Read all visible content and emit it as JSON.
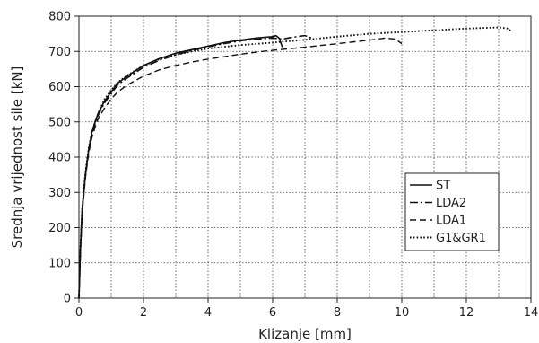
{
  "chart_data": {
    "type": "line",
    "xlabel": "Klizanje [mm]",
    "ylabel": "Srednja vrijednost sile [kN]",
    "xlim": [
      0,
      14
    ],
    "ylim": [
      0,
      800
    ],
    "xticks": [
      "0",
      "2",
      "4",
      "6",
      "8",
      "10",
      "12",
      "14"
    ],
    "yticks": [
      "0",
      "100",
      "200",
      "300",
      "400",
      "500",
      "600",
      "700",
      "800"
    ],
    "grid": true,
    "legend_position": "center-right",
    "series": [
      {
        "name": "ST",
        "style": "solid",
        "x": [
          0,
          0.05,
          0.1,
          0.2,
          0.3,
          0.4,
          0.5,
          0.6,
          0.8,
          1.0,
          1.2,
          1.5,
          2.0,
          2.5,
          3.0,
          3.5,
          4.0,
          4.5,
          5.0,
          5.5,
          6.0,
          6.1,
          6.2,
          6.25,
          6.3
        ],
        "y": [
          0,
          150,
          250,
          350,
          420,
          470,
          500,
          525,
          560,
          585,
          610,
          630,
          660,
          680,
          695,
          705,
          715,
          725,
          732,
          738,
          742,
          745,
          738,
          725,
          712
        ]
      },
      {
        "name": "LDA2",
        "style": "dashdot",
        "x": [
          0,
          0.05,
          0.1,
          0.2,
          0.3,
          0.4,
          0.5,
          0.6,
          0.8,
          1.0,
          1.2,
          1.5,
          2.0,
          2.5,
          3.0,
          3.5,
          4.0,
          4.5,
          5.0,
          5.5,
          6.0,
          6.3,
          6.6,
          7.0,
          7.2
        ],
        "y": [
          0,
          150,
          250,
          350,
          420,
          465,
          495,
          520,
          555,
          580,
          605,
          625,
          655,
          675,
          690,
          703,
          713,
          722,
          730,
          735,
          738,
          735,
          740,
          745,
          738
        ]
      },
      {
        "name": "LDA1",
        "style": "dashed",
        "x": [
          0,
          0.05,
          0.1,
          0.2,
          0.3,
          0.4,
          0.5,
          0.6,
          0.8,
          1.0,
          1.2,
          1.5,
          2.0,
          2.5,
          3.0,
          3.5,
          4.0,
          4.5,
          5.0,
          5.5,
          6.0,
          7.0,
          8.0,
          9.0,
          9.5,
          9.8,
          10.0
        ],
        "y": [
          0,
          140,
          240,
          340,
          410,
          455,
          485,
          510,
          540,
          565,
          585,
          605,
          630,
          648,
          660,
          670,
          678,
          685,
          692,
          698,
          703,
          712,
          722,
          732,
          738,
          735,
          722
        ]
      },
      {
        "name": "G1&GR1",
        "style": "dotted",
        "x": [
          0,
          0.05,
          0.1,
          0.2,
          0.3,
          0.4,
          0.5,
          0.6,
          0.8,
          1.0,
          1.2,
          1.5,
          2.0,
          2.5,
          3.0,
          3.5,
          4.0,
          5.0,
          6.0,
          7.0,
          8.0,
          9.0,
          10.0,
          11.0,
          12.0,
          13.0,
          13.3,
          13.4
        ],
        "y": [
          0,
          155,
          255,
          355,
          425,
          470,
          500,
          525,
          565,
          590,
          612,
          632,
          660,
          678,
          690,
          700,
          708,
          718,
          725,
          733,
          742,
          750,
          755,
          760,
          765,
          768,
          765,
          755
        ]
      }
    ]
  }
}
